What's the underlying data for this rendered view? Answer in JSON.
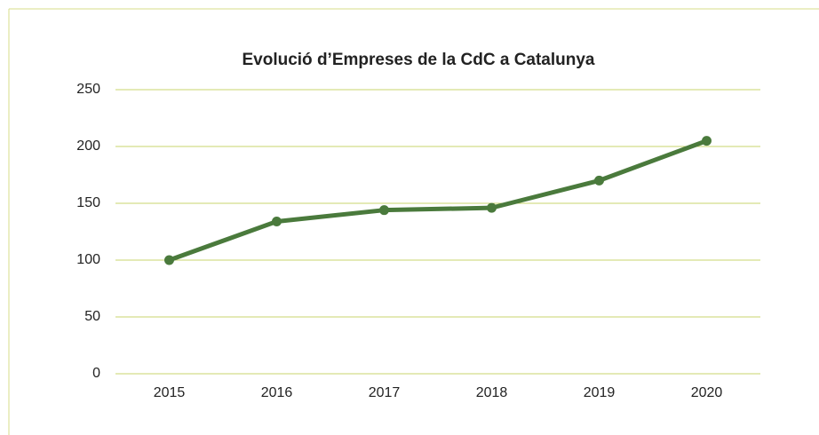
{
  "chart_data": {
    "type": "line",
    "title": "Evolució d’Empreses de la CdC a Catalunya",
    "categories": [
      "2015",
      "2016",
      "2017",
      "2018",
      "2019",
      "2020"
    ],
    "values": [
      100,
      134,
      144,
      146,
      170,
      205
    ],
    "color": "#4a7a3c",
    "ylim": [
      0,
      250
    ],
    "yticks": [
      0,
      50,
      100,
      150,
      200,
      250
    ],
    "grid": true
  }
}
